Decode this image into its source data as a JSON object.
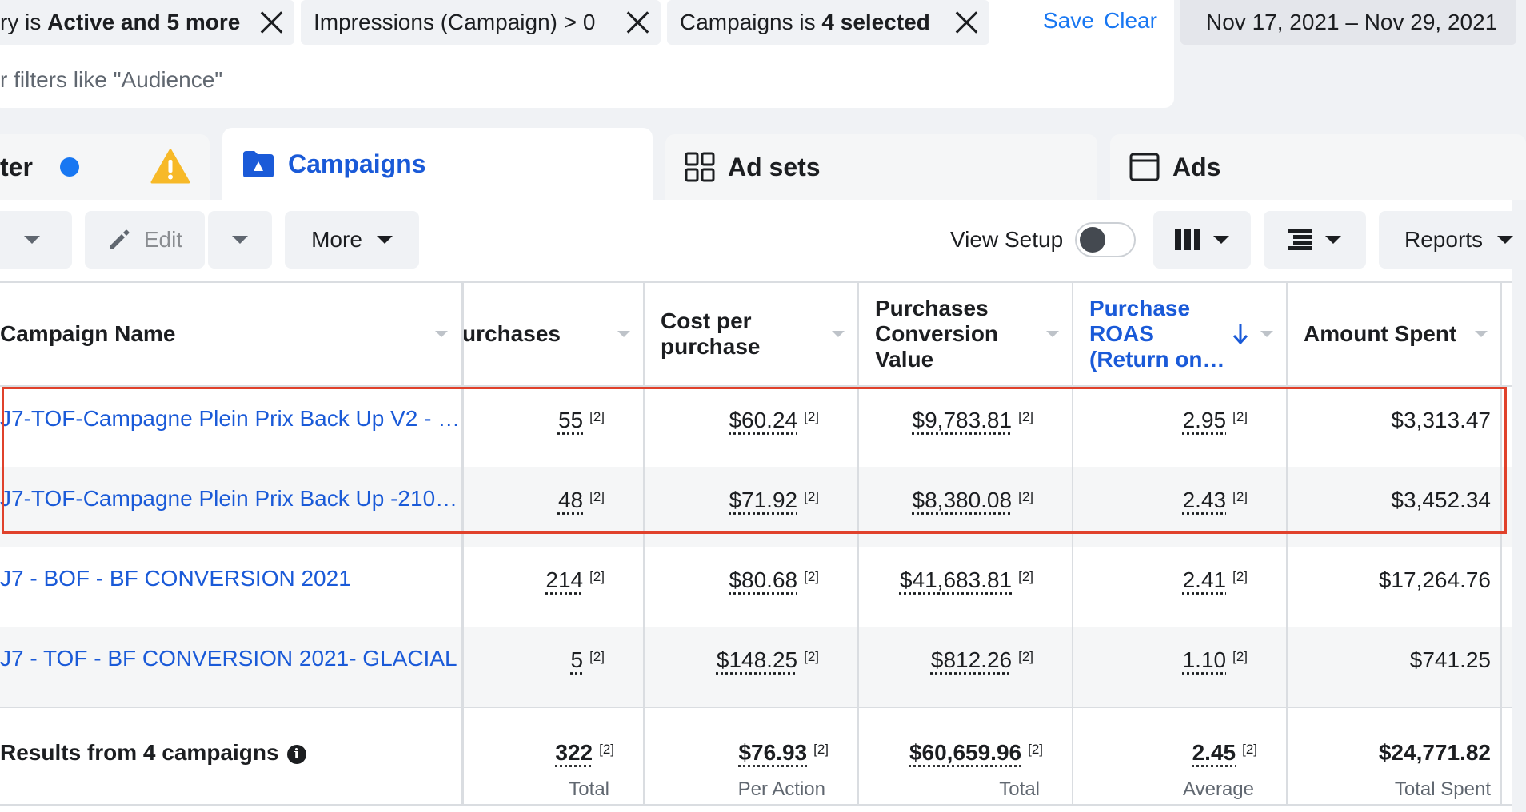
{
  "filters": {
    "chips": [
      {
        "prefix": "ry is ",
        "bold": "Active and 5 more"
      },
      {
        "prefix": "Impressions (Campaign) > 0",
        "bold": ""
      },
      {
        "prefix": "Campaigns is ",
        "bold": "4 selected"
      }
    ],
    "save_label": "Save",
    "clear_label": "Clear",
    "search_placeholder": "r filters like \"Audience\""
  },
  "date_range": "Nov 17, 2021 – Nov 29, 2021",
  "tabs": {
    "account": "ter",
    "campaigns": "Campaigns",
    "adsets": "Ad sets",
    "ads": "Ads"
  },
  "toolbar": {
    "edit_label": "Edit",
    "more_label": "More",
    "view_setup_label": "View Setup",
    "reports_label": "Reports"
  },
  "table": {
    "headers": {
      "campaign_name": "Campaign Name",
      "purchases": "urchases",
      "cost_per_purchase": [
        "Cost per",
        "purchase"
      ],
      "conversion_value": [
        "Purchases",
        "Conversion",
        "Value"
      ],
      "roas": [
        "Purchase",
        "ROAS",
        "(Return on…"
      ],
      "amount_spent": "Amount Spent"
    },
    "note": "[2]",
    "rows": [
      {
        "name": "J7-TOF-Campagne Plein Prix Back Up V2 - …",
        "purchases": "55",
        "cost": "$60.24",
        "value": "$9,783.81",
        "roas": "2.95",
        "spent": "$3,313.47"
      },
      {
        "name": "J7-TOF-Campagne Plein Prix Back Up -210…",
        "purchases": "48",
        "cost": "$71.92",
        "value": "$8,380.08",
        "roas": "2.43",
        "spent": "$3,452.34"
      },
      {
        "name": "J7 - BOF - BF CONVERSION 2021",
        "purchases": "214",
        "cost": "$80.68",
        "value": "$41,683.81",
        "roas": "2.41",
        "spent": "$17,264.76"
      },
      {
        "name": "J7 - TOF - BF CONVERSION 2021- GLACIAL",
        "purchases": "5",
        "cost": "$148.25",
        "value": "$812.26",
        "roas": "1.10",
        "spent": "$741.25"
      }
    ],
    "footer": {
      "label": "Results from 4 campaigns",
      "purchases": "322",
      "purchases_sub": "Total",
      "cost": "$76.93",
      "cost_sub": "Per Action",
      "value": "$60,659.96",
      "value_sub": "Total",
      "roas": "2.45",
      "roas_sub": "Average",
      "spent": "$24,771.82",
      "spent_sub": "Total Spent"
    }
  },
  "colors": {
    "link_blue": "#1a5ad8",
    "accent": "#1877f2",
    "highlight": "#e0412b",
    "warning": "#f7b928"
  }
}
